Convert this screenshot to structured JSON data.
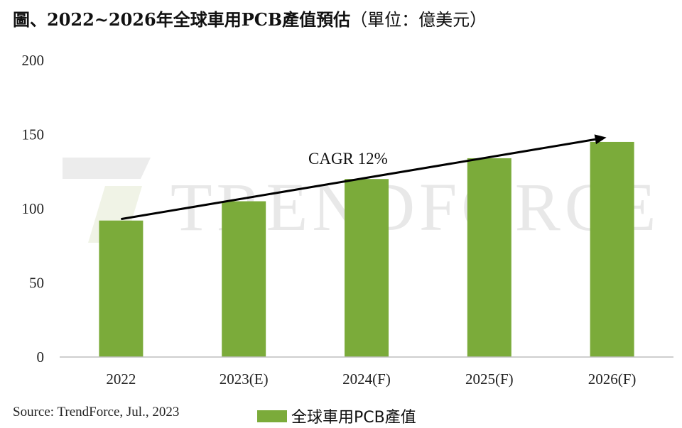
{
  "title": {
    "main": "圖、2022~2026年全球車用PCB產值預估",
    "unit": "（單位：億美元）"
  },
  "source": "Source: TrendForce, Jul., 2023",
  "watermark": "TRENDFORCE",
  "colors": {
    "bar": "#7bab3a",
    "axis": "#bfbfbf",
    "arrow": "#000000"
  },
  "chart_data": {
    "type": "bar",
    "categories": [
      "2022",
      "2023(E)",
      "2024(F)",
      "2025(F)",
      "2026(F)"
    ],
    "series": [
      {
        "name": "全球車用PCB產值",
        "values": [
          92,
          105,
          120,
          134,
          145
        ]
      }
    ],
    "yticks": [
      "0",
      "50",
      "100",
      "150",
      "200"
    ],
    "ylim": [
      0,
      200
    ],
    "grid": false,
    "legend": "bottom",
    "annotation": {
      "text": "CAGR 12%",
      "type": "arrow",
      "from": [
        0,
        93
      ],
      "to": [
        4,
        148
      ]
    }
  }
}
